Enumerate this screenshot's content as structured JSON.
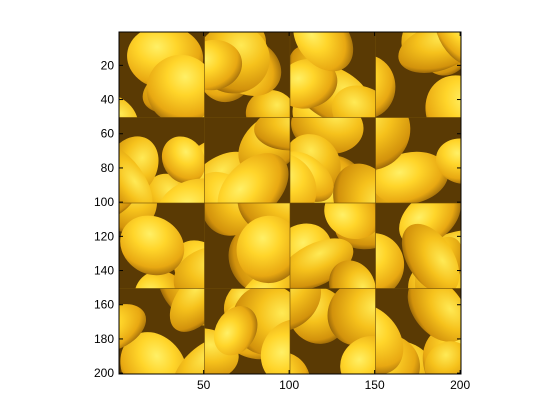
{
  "image": {
    "description_name": "shuffled-lemon-tiles",
    "grid": {
      "rows": 4,
      "cols": 4
    },
    "x_range": [
      0.5,
      200.5
    ],
    "y_range": [
      0.5,
      200.5
    ],
    "x_ticks": [
      50,
      100,
      150,
      200
    ],
    "y_ticks": [
      20,
      40,
      60,
      80,
      100,
      120,
      140,
      160,
      180,
      200
    ],
    "palette": {
      "base": "#E7B21A",
      "highlight": "#FFE040",
      "mid": "#F2C01E",
      "shadow": "#8A5A08",
      "deep_shadow": "#5A3A04",
      "seam": "#6B4A06"
    }
  },
  "axis": {
    "x_tick_labels": [
      "50",
      "100",
      "150",
      "200"
    ],
    "y_tick_labels": [
      "20",
      "40",
      "60",
      "80",
      "100",
      "120",
      "140",
      "160",
      "180",
      "200"
    ]
  }
}
